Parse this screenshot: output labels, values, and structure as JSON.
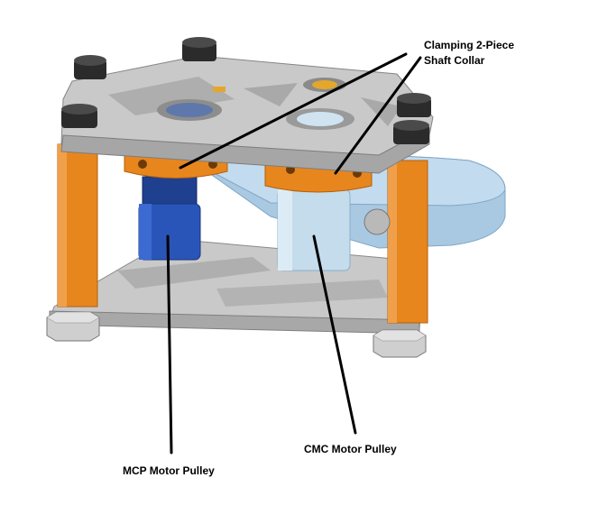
{
  "labels": {
    "collar_line1": "Clamping 2-Piece",
    "collar_line2": "Shaft Collar",
    "cmc": "CMC Motor Pulley",
    "mcp": "MCP Motor Pulley"
  },
  "colors": {
    "standoff": "#e8861e",
    "plate": "#bfbfbf",
    "mcp_pulley": "#2a55b8",
    "cmc_pulley": "#c4dcec",
    "belt_disc": "#a9c9e3",
    "bolt": "#2b2b2b"
  },
  "icons": [
    "hex-nut-icon",
    "socket-head-bolt-icon"
  ]
}
